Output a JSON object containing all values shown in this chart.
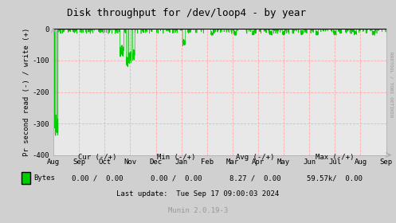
{
  "title": "Disk throughput for /dev/loop4 - by year",
  "ylabel": "Pr second read (-) / write (+)",
  "background_color": "#d0d0d0",
  "plot_bg_color": "#e8e8e8",
  "grid_color": "#ffaaaa",
  "line_color": "#00cc00",
  "ylim": [
    -400,
    0
  ],
  "yticks": [
    0,
    -100,
    -200,
    -300,
    -400
  ],
  "xlabel_months": [
    "Aug",
    "Sep",
    "Oct",
    "Nov",
    "Dec",
    "Jan",
    "Feb",
    "Mar",
    "Apr",
    "May",
    "Jun",
    "Jul",
    "Aug",
    "Sep"
  ],
  "legend_label": "Bytes",
  "legend_color": "#00cc00",
  "cur_label": "Cur (-/+)",
  "min_label": "Min (-/+)",
  "avg_label": "Avg (-/+)",
  "max_label": "Max (-/+)",
  "cur_val": "0.00 /  0.00",
  "min_val": "0.00 /  0.00",
  "avg_val": "8.27 /  0.00",
  "max_val": "59.57k/  0.00",
  "last_update": "Last update:  Tue Sep 17 09:00:03 2024",
  "munin_version": "Munin 2.0.19-3",
  "rrdtool_label": "RRDTOOL / TOBI OETIKER",
  "title_fontsize": 9,
  "axis_fontsize": 6.5,
  "small_fontsize": 6.5
}
